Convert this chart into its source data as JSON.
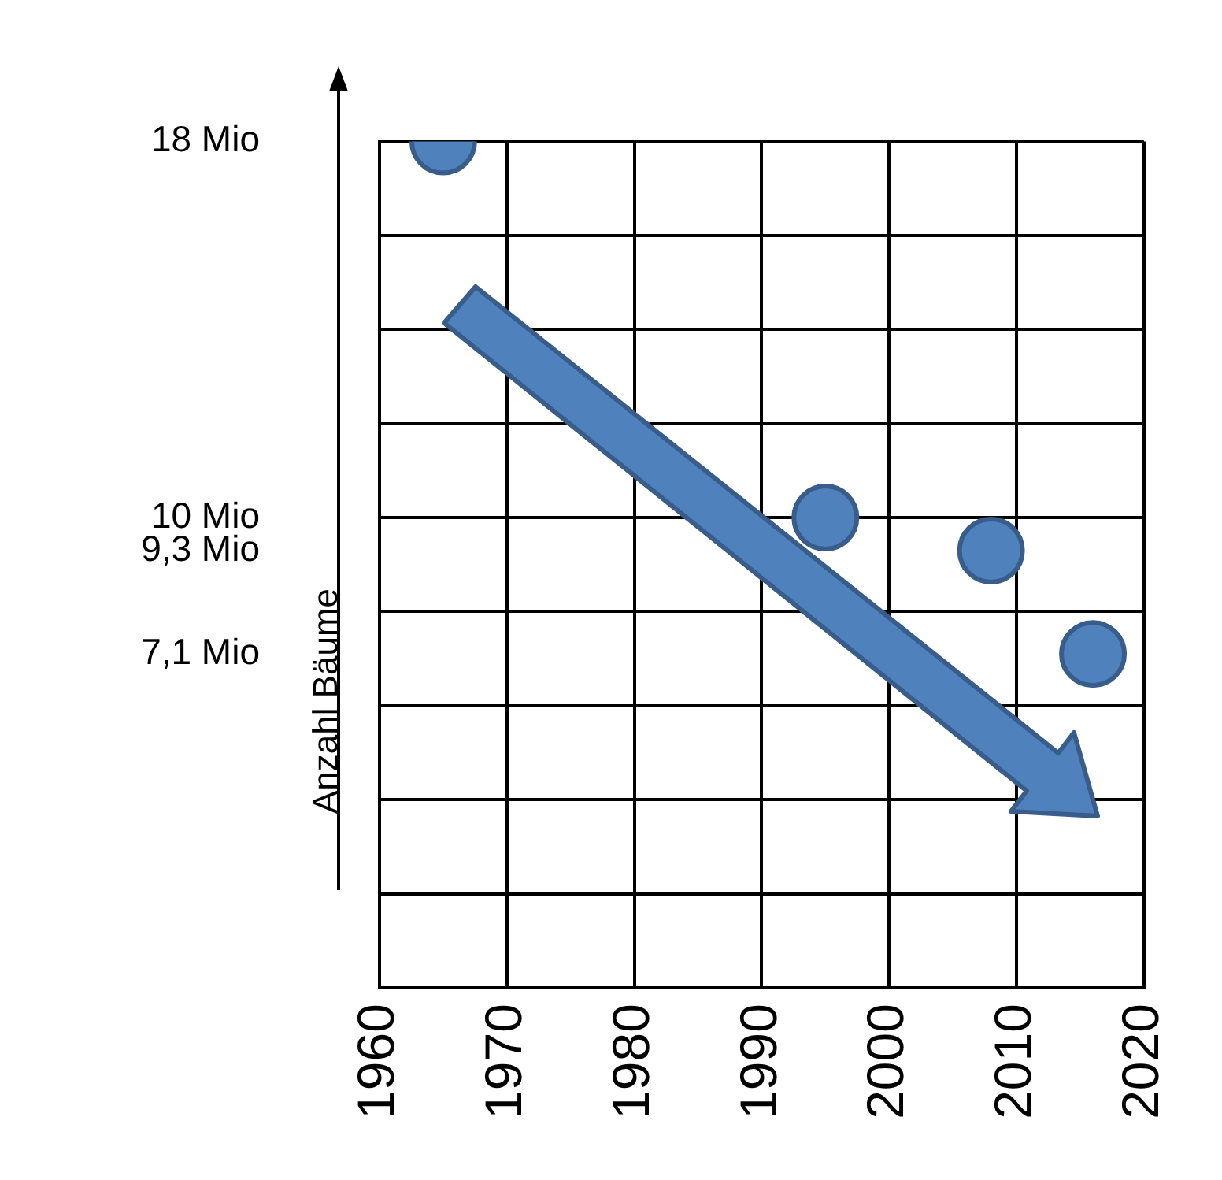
{
  "chart_data": {
    "type": "scatter",
    "ylabel": "Anzahl Bäume",
    "x": [
      1965,
      1995,
      2008,
      2016
    ],
    "series": [
      {
        "color": "#4f81bd",
        "values": [
          18,
          10,
          9.3,
          7.1
        ]
      }
    ],
    "xlim": [
      1960,
      2020
    ],
    "xticks": [
      1960,
      1970,
      1980,
      1990,
      2000,
      2010,
      2020
    ],
    "ylim": [
      0,
      18
    ],
    "yticks": [
      {
        "value": 0,
        "label": null
      },
      {
        "value": 2,
        "label": null
      },
      {
        "value": 4,
        "label": null
      },
      {
        "value": 6,
        "label": null
      },
      {
        "value": 7.1,
        "label": "7,1 Mio"
      },
      {
        "value": 8,
        "label": null
      },
      {
        "value": 9.3,
        "label": "9,3 Mio"
      },
      {
        "value": 10,
        "label": "10 Mio"
      },
      {
        "value": 12,
        "label": null
      },
      {
        "value": 14,
        "label": null
      },
      {
        "value": 16,
        "label": null
      },
      {
        "value": 18,
        "label": "18 Mio"
      }
    ],
    "grid": true,
    "legend": false,
    "marker": "circle"
  }
}
